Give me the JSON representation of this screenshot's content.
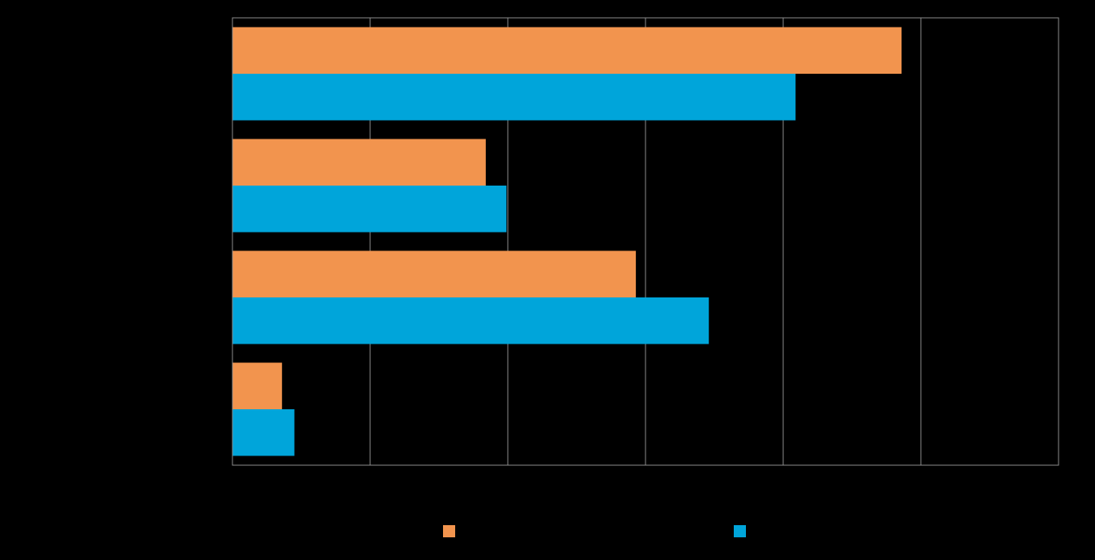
{
  "chart_data": {
    "type": "bar",
    "orientation": "horizontal",
    "title": "",
    "xlabel": "",
    "ylabel": "",
    "categories": [
      "",
      "",
      "",
      ""
    ],
    "xlim": [
      0,
      6
    ],
    "grid": true,
    "legend_position": "bottom",
    "series": [
      {
        "name": "",
        "color": "#F2944E",
        "values": [
          4.86,
          1.84,
          2.93,
          0.36
        ]
      },
      {
        "name": "",
        "color": "#00A5DA",
        "values": [
          4.09,
          1.99,
          3.46,
          0.45
        ]
      }
    ]
  }
}
